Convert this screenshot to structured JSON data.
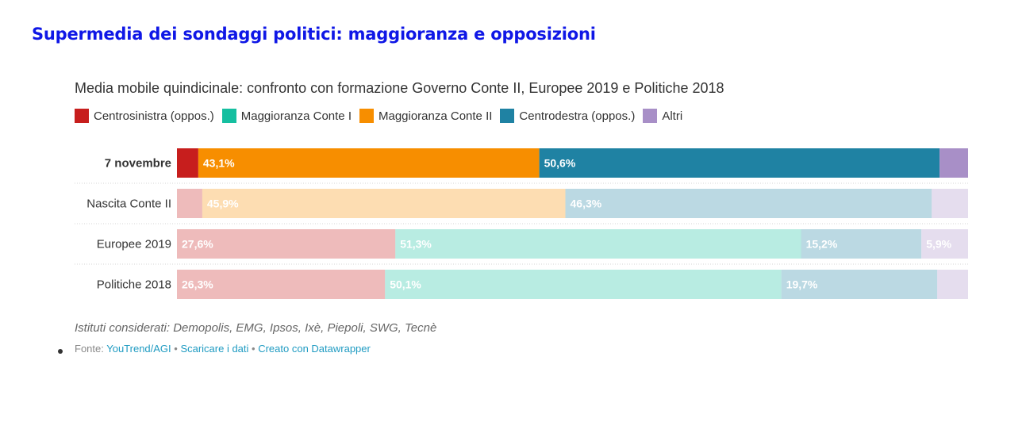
{
  "header": {
    "title": "Supermedia dei sondaggi politici: maggioranza e opposizioni",
    "subtitle": "Media mobile quindicinale: confronto con formazione Governo Conte II, Europee 2019 e Politiche 2018"
  },
  "legend": [
    {
      "label": "Centrosinistra (oppos.)",
      "color": "#c71e1d"
    },
    {
      "label": "Maggioranza Conte I",
      "color": "#15bfa0"
    },
    {
      "label": "Maggioranza Conte II",
      "color": "#f78e00"
    },
    {
      "label": "Centrodestra (oppos.)",
      "color": "#1f82a3"
    },
    {
      "label": "Altri",
      "color": "#a88fc7"
    }
  ],
  "chart_data": {
    "type": "bar",
    "orientation": "horizontal",
    "stacked": true,
    "xlim": [
      0,
      100
    ],
    "categories": [
      "7 novembre",
      "Nascita Conte II",
      "Europee 2019",
      "Politiche 2018"
    ],
    "rows": [
      {
        "label": "7 novembre",
        "bold": true,
        "faded": false,
        "segments": [
          {
            "color": "#c71e1d",
            "value": 2.7,
            "label": ""
          },
          {
            "color": "#f78e00",
            "value": 43.1,
            "label": "43,1%"
          },
          {
            "color": "#1f82a3",
            "value": 50.6,
            "label": "50,6%"
          },
          {
            "color": "#a88fc7",
            "value": 3.6,
            "label": ""
          }
        ]
      },
      {
        "label": "Nascita Conte II",
        "bold": false,
        "faded": true,
        "segments": [
          {
            "color": "#c71e1d",
            "value": 3.2,
            "label": ""
          },
          {
            "color": "#f78e00",
            "value": 45.9,
            "label": "45,9%"
          },
          {
            "color": "#1f82a3",
            "value": 46.3,
            "label": "46,3%"
          },
          {
            "color": "#a88fc7",
            "value": 4.6,
            "label": ""
          }
        ]
      },
      {
        "label": "Europee 2019",
        "bold": false,
        "faded": true,
        "segments": [
          {
            "color": "#c71e1d",
            "value": 27.6,
            "label": "27,6%"
          },
          {
            "color": "#15bfa0",
            "value": 51.3,
            "label": "51,3%"
          },
          {
            "color": "#1f82a3",
            "value": 15.2,
            "label": "15,2%"
          },
          {
            "color": "#a88fc7",
            "value": 5.9,
            "label": "5,9%"
          }
        ]
      },
      {
        "label": "Politiche 2018",
        "bold": false,
        "faded": true,
        "segments": [
          {
            "color": "#c71e1d",
            "value": 26.3,
            "label": "26,3%"
          },
          {
            "color": "#15bfa0",
            "value": 50.1,
            "label": "50,1%"
          },
          {
            "color": "#1f82a3",
            "value": 19.7,
            "label": "19,7%"
          },
          {
            "color": "#a88fc7",
            "value": 3.9,
            "label": ""
          }
        ]
      }
    ]
  },
  "notes": "Istituti considerati: Demopolis, EMG, Ipsos, Ixè, Piepoli, SWG, Tecnè",
  "footer": {
    "source_prefix": "Fonte: ",
    "source": "YouTrend/AGI",
    "separator": " • ",
    "download": "Scaricare i dati",
    "created": "Creato con Datawrapper"
  }
}
